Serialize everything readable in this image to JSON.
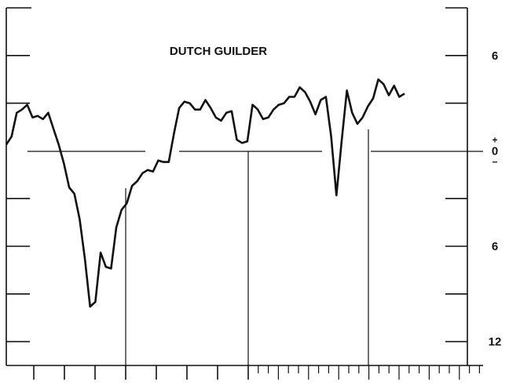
{
  "chart_data": {
    "type": "line",
    "title": "DUTCH GUILDER",
    "values": [
      0.4,
      0.9,
      2.4,
      2.6,
      2.9,
      2.1,
      2.2,
      2.0,
      2.4,
      1.4,
      0.4,
      -0.8,
      -2.3,
      -2.7,
      -4.3,
      -6.8,
      -9.8,
      -9.5,
      -6.4,
      -7.3,
      -7.4,
      -4.8,
      -3.7,
      -3.3,
      -2.2,
      -1.9,
      -1.4,
      -1.2,
      -1.3,
      -0.6,
      -0.7,
      -0.7,
      1.1,
      2.7,
      3.1,
      3.0,
      2.6,
      2.6,
      3.2,
      2.7,
      2.1,
      1.9,
      2.4,
      2.5,
      0.7,
      0.5,
      0.6,
      2.9,
      2.6,
      2.0,
      2.1,
      2.6,
      2.9,
      3.0,
      3.4,
      3.4,
      4.0,
      3.7,
      3.1,
      2.3,
      3.2,
      3.4,
      0.9,
      -2.8,
      0.6,
      3.8,
      2.4,
      1.7,
      2.1,
      2.8,
      3.3,
      4.5,
      4.2,
      3.5,
      4.1,
      3.4,
      3.6
    ],
    "color": "#111111",
    "ylim": [
      -13.5,
      9
    ],
    "yticks": [
      {
        "value": 6,
        "label": "6"
      },
      {
        "value": 0,
        "label": "0"
      },
      {
        "value": -6,
        "label": "6"
      },
      {
        "value": -12,
        "label": "12"
      }
    ],
    "minor_yticks": [
      3,
      -3,
      -9
    ],
    "zero_signs": [
      "+",
      "−"
    ]
  }
}
